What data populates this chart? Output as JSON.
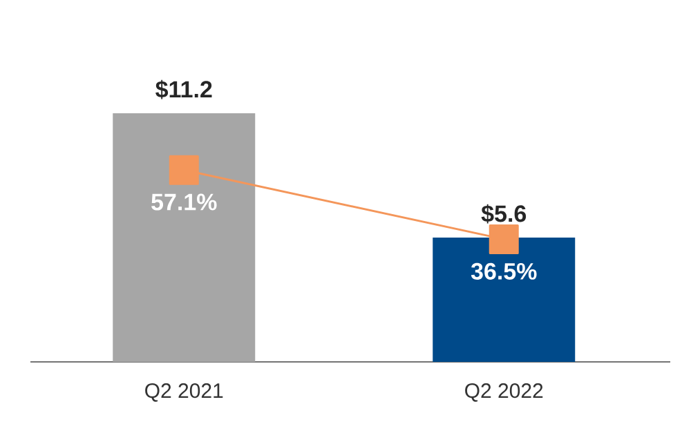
{
  "chart_data": {
    "type": "bar",
    "categories": [
      "Q2 2021",
      "Q2 2022"
    ],
    "tick_labels": "x",
    "series": [
      {
        "colors": [
          "#a6a6a6",
          "#004a8a"
        ],
        "values": [
          11.2,
          5.6
        ],
        "value_labels": [
          "$11.2",
          "$5.6"
        ]
      },
      {
        "type": "line",
        "axis": "y2",
        "color": "#f4965a",
        "marker": "square",
        "values": [
          57.1,
          36.5
        ],
        "value_labels": [
          "57.1%",
          "36.5%"
        ]
      }
    ]
  }
}
